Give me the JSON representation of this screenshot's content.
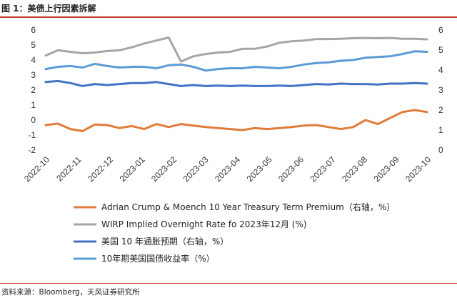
{
  "header": {
    "title": "图 1：美债上行因素拆解"
  },
  "footer": {
    "source": "资料来源：Bloomberg，天风证券研究所"
  },
  "chart_data": {
    "type": "line",
    "x_labels": [
      "2022-10",
      "2022-11",
      "2022-12",
      "2023-01",
      "2023-02",
      "2023-03",
      "2023-04",
      "2023-05",
      "2023-06",
      "2023-07",
      "2023-08",
      "2023-09",
      "2023-10"
    ],
    "left_axis": {
      "ylim": [
        -2,
        6
      ],
      "ticks": [
        "-2",
        "-1",
        "0",
        "1",
        "2",
        "3",
        "4",
        "5",
        "6"
      ]
    },
    "right_axis": {
      "ylim": [
        0,
        6
      ],
      "ticks": [
        "0",
        "1",
        "2",
        "3",
        "4",
        "5",
        "6"
      ]
    },
    "grid": false,
    "legend_position": "bottom",
    "series": [
      {
        "name": "Adrian Crump & Moench 10 Year Treasury Term Premium（右轴，%）",
        "axis": "right",
        "color": "#e07b39",
        "values": [
          1.25,
          1.32,
          1.05,
          0.95,
          1.28,
          1.25,
          1.1,
          1.2,
          1.05,
          1.3,
          1.15,
          1.3,
          1.22,
          1.15,
          1.1,
          1.05,
          1.0,
          1.1,
          1.05,
          1.1,
          1.15,
          1.22,
          1.25,
          1.15,
          1.05,
          1.15,
          1.5,
          1.3,
          1.6,
          1.9,
          2.0,
          1.9
        ]
      },
      {
        "name": "WIRP Implied Overnight Rate fo 2023年12月 (%)",
        "axis": "left",
        "color": "#a5a5a5",
        "values": [
          4.3,
          4.65,
          4.55,
          4.45,
          4.5,
          4.6,
          4.65,
          4.85,
          5.1,
          5.3,
          5.5,
          3.9,
          4.25,
          4.4,
          4.5,
          4.55,
          4.75,
          4.75,
          4.9,
          5.15,
          5.25,
          5.3,
          5.4,
          5.4,
          5.42,
          5.45,
          5.47,
          5.45,
          5.47,
          5.42,
          5.42,
          5.38
        ]
      },
      {
        "name": "美国 10 年通胀预期（右轴，%）",
        "axis": "right",
        "color": "#4472c4",
        "values": [
          3.4,
          3.45,
          3.35,
          3.2,
          3.3,
          3.25,
          3.3,
          3.35,
          3.35,
          3.4,
          3.3,
          3.2,
          3.25,
          3.2,
          3.22,
          3.2,
          3.22,
          3.2,
          3.2,
          3.22,
          3.2,
          3.25,
          3.3,
          3.28,
          3.32,
          3.3,
          3.3,
          3.28,
          3.32,
          3.32,
          3.35,
          3.32
        ]
      },
      {
        "name": "10年期美国国债收益率（%）",
        "axis": "left",
        "color": "#5b9bd5",
        "values": [
          3.4,
          3.55,
          3.6,
          3.5,
          3.75,
          3.6,
          3.5,
          3.55,
          3.55,
          3.45,
          3.65,
          3.7,
          3.55,
          3.3,
          3.4,
          3.45,
          3.45,
          3.55,
          3.5,
          3.45,
          3.55,
          3.7,
          3.8,
          3.85,
          3.95,
          4.0,
          4.15,
          4.2,
          4.25,
          4.4,
          4.58,
          4.55
        ]
      }
    ]
  }
}
